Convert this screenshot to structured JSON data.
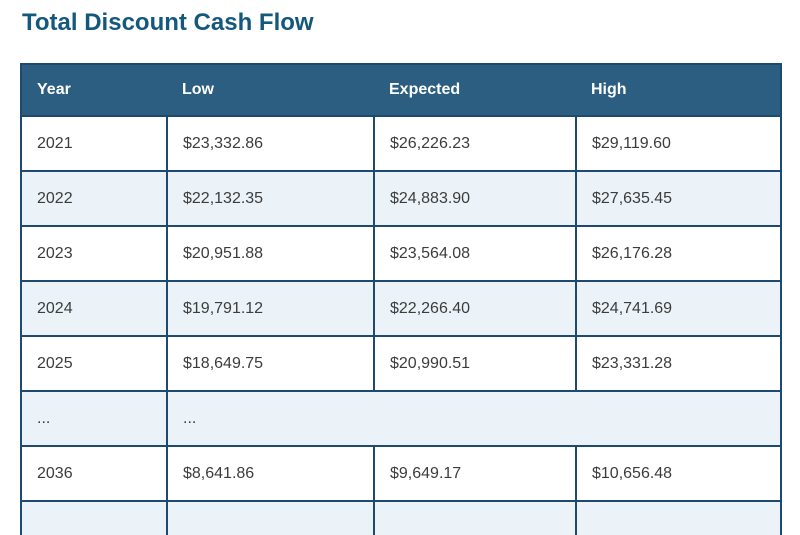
{
  "page": {
    "title": "Total Discount Cash Flow"
  },
  "colors": {
    "title_text": "#14587e",
    "header_bg": "#2b5e81",
    "header_text": "#ffffff",
    "table_border": "#1d4a6e",
    "row_bg": "#ffffff",
    "row_alt_bg": "#ebf3f8",
    "cell_text": "#3c3c3c"
  },
  "chart_data": {
    "type": "table",
    "title": "Total Discount Cash Flow",
    "columns": [
      "Year",
      "Low",
      "Expected",
      "High"
    ],
    "rows": [
      {
        "cells": [
          "2021",
          "$23,332.86",
          "$26,226.23",
          "$29,119.60"
        ]
      },
      {
        "cells": [
          "2022",
          "$22,132.35",
          "$24,883.90",
          "$27,635.45"
        ]
      },
      {
        "cells": [
          "2023",
          "$20,951.88",
          "$23,564.08",
          "$26,176.28"
        ]
      },
      {
        "cells": [
          "2024",
          "$19,791.12",
          "$22,266.40",
          "$24,741.69"
        ]
      },
      {
        "cells": [
          "2025",
          "$18,649.75",
          "$20,990.51",
          "$23,331.28"
        ]
      },
      {
        "cells": [
          "...",
          "..."
        ],
        "ellipsis": true
      },
      {
        "cells": [
          "2036",
          "$8,641.86",
          "$9,649.17",
          "$10,656.48"
        ]
      },
      {
        "cells": [
          "",
          "",
          "",
          ""
        ],
        "partial": true
      }
    ]
  }
}
